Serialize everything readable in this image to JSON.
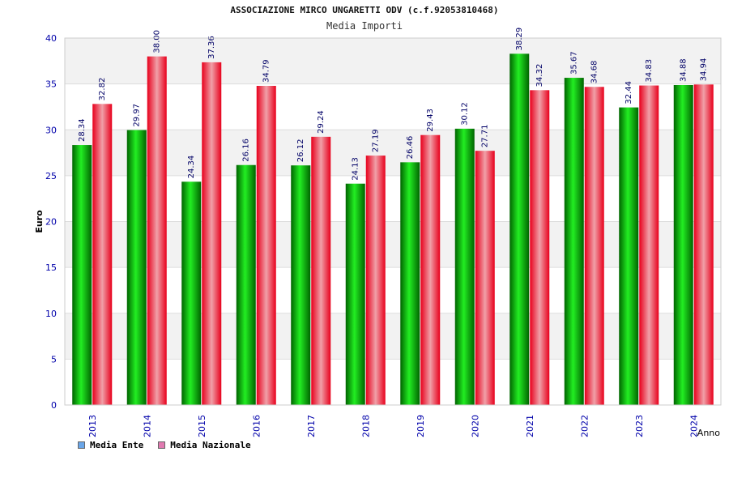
{
  "header": {
    "title": "ASSOCIAZIONE MIRCO UNGARETTI ODV (c.f.92053810468)",
    "subtitle": "Media Importi"
  },
  "legend": [
    {
      "label": "Media Ente",
      "color": "#6aa6e8"
    },
    {
      "label": "Media Nazionale",
      "color": "#e07ab0"
    }
  ],
  "colors": {
    "ente_dark": "#006400",
    "ente_light": "#22ee22",
    "naz_dark": "#e8001c",
    "naz_light": "#f0a0a8",
    "axis_text": "#0000aa",
    "label_text": "#000066",
    "band": "#f2f2f2"
  },
  "chart_data": {
    "type": "bar",
    "title": "ASSOCIAZIONE MIRCO UNGARETTI ODV (c.f.92053810468)",
    "subtitle": "Media Importi",
    "xlabel": "Anno",
    "ylabel": "Euro",
    "ylim": [
      0,
      40
    ],
    "yticks": [
      0,
      5,
      10,
      15,
      20,
      25,
      30,
      35,
      40
    ],
    "categories": [
      "2013",
      "2014",
      "2015",
      "2016",
      "2017",
      "2018",
      "2019",
      "2020",
      "2021",
      "2022",
      "2023",
      "2024"
    ],
    "series": [
      {
        "name": "Media Ente",
        "values": [
          28.34,
          29.97,
          24.34,
          26.16,
          26.12,
          24.13,
          26.46,
          30.12,
          38.29,
          35.67,
          32.44,
          34.88
        ]
      },
      {
        "name": "Media Nazionale",
        "values": [
          32.82,
          38.0,
          37.36,
          34.79,
          29.24,
          27.19,
          29.43,
          27.71,
          34.32,
          34.68,
          34.83,
          34.94
        ]
      }
    ],
    "data_labels": [
      [
        "28.34",
        "29.97",
        "24.34",
        "26.16",
        "26.12",
        "24.13",
        "26.46",
        "30.12",
        "38.29",
        "35.67",
        "32.44",
        "34.88"
      ],
      [
        "32.82",
        "38.00",
        "37.36",
        "34.79",
        "29.24",
        "27.19",
        "29.43",
        "27.71",
        "34.32",
        "34.68",
        "34.83",
        "34.94"
      ]
    ],
    "grid": true,
    "legend_position": "bottom-left"
  }
}
